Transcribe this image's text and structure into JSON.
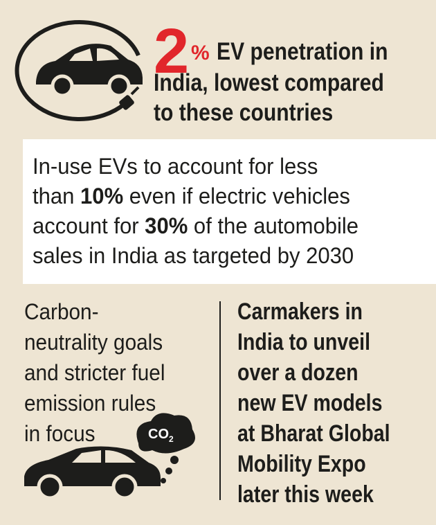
{
  "header": {
    "stat": "2",
    "unit": "%",
    "lines": [
      "EV penetration in",
      "India, lowest compared",
      "to these countries"
    ]
  },
  "box": {
    "lines": [
      [
        "In-use EVs to account for less"
      ],
      [
        "than ",
        "10%",
        " even if electric vehicles"
      ],
      [
        "account for ",
        "30%",
        " of the automobile"
      ],
      [
        "sales in India as targeted by 2030"
      ]
    ]
  },
  "left": {
    "lines": [
      "Carbon-",
      "neutrality goals",
      "and stricter fuel",
      "emission rules",
      "in focus"
    ],
    "co2": [
      "CO",
      "2"
    ]
  },
  "right": {
    "lines": [
      "Carmakers in",
      "India to unveil",
      "over a dozen",
      "new EV models",
      "at Bharat Global",
      "Mobility Expo",
      "later this week"
    ]
  }
}
